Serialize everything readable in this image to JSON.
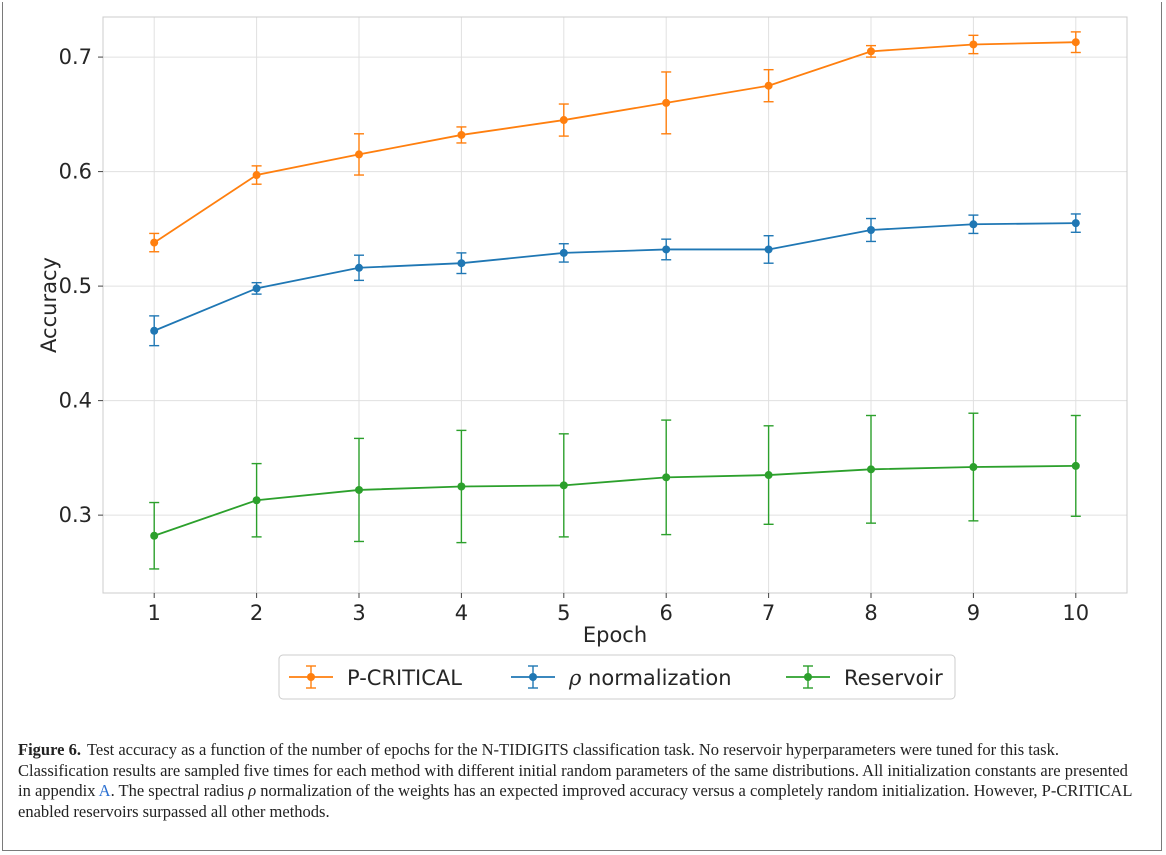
{
  "chart_data": {
    "type": "line",
    "xlabel": "Epoch",
    "ylabel": "Accuracy",
    "x": [
      1,
      2,
      3,
      4,
      5,
      6,
      7,
      8,
      9,
      10
    ],
    "xlim": [
      0.5,
      10.5
    ],
    "ylim": [
      0.232,
      0.735
    ],
    "yticks": [
      "0.3",
      "0.4",
      "0.5",
      "0.6",
      "0.7"
    ],
    "xticks": [
      "1",
      "2",
      "3",
      "4",
      "5",
      "6",
      "7",
      "8",
      "9",
      "10"
    ],
    "grid": true,
    "error_bars": true,
    "legend_position": "bottom-center, below axes",
    "series": [
      {
        "name": "P-CRITICAL",
        "color": "#ff7f0e",
        "values": [
          0.538,
          0.597,
          0.615,
          0.632,
          0.645,
          0.66,
          0.675,
          0.705,
          0.711,
          0.713
        ],
        "errors": [
          0.008,
          0.008,
          0.018,
          0.007,
          0.014,
          0.027,
          0.014,
          0.005,
          0.008,
          0.009
        ]
      },
      {
        "name_prefix": "ρ",
        "name_suffix": " normalization",
        "color": "#1f77b4",
        "values": [
          0.461,
          0.498,
          0.516,
          0.52,
          0.529,
          0.532,
          0.532,
          0.549,
          0.554,
          0.555
        ],
        "errors": [
          0.013,
          0.005,
          0.011,
          0.009,
          0.008,
          0.009,
          0.012,
          0.01,
          0.008,
          0.008
        ]
      },
      {
        "name": "Reservoir",
        "color": "#2ca02c",
        "values": [
          0.282,
          0.313,
          0.322,
          0.325,
          0.326,
          0.333,
          0.335,
          0.34,
          0.342,
          0.343
        ],
        "errors": [
          0.029,
          0.032,
          0.045,
          0.049,
          0.045,
          0.05,
          0.043,
          0.047,
          0.047,
          0.044
        ]
      }
    ]
  },
  "caption": {
    "label": "Figure 6.",
    "part1": "Test accuracy as a function of the number of epochs for the N-TIDIGITS classification task. No reservoir hyperparameters were tuned for this task. Classification results are sampled five times for each method with different initial random parameters of the same distributions. All initialization constants are presented in appendix ",
    "link": "A",
    "part2": ". The spectral radius ",
    "rho": "ρ",
    "part3": " normalization of the weights has an expected improved accuracy versus a completely random initialization. However, P-CRITICAL enabled reservoirs surpassed all other methods."
  }
}
